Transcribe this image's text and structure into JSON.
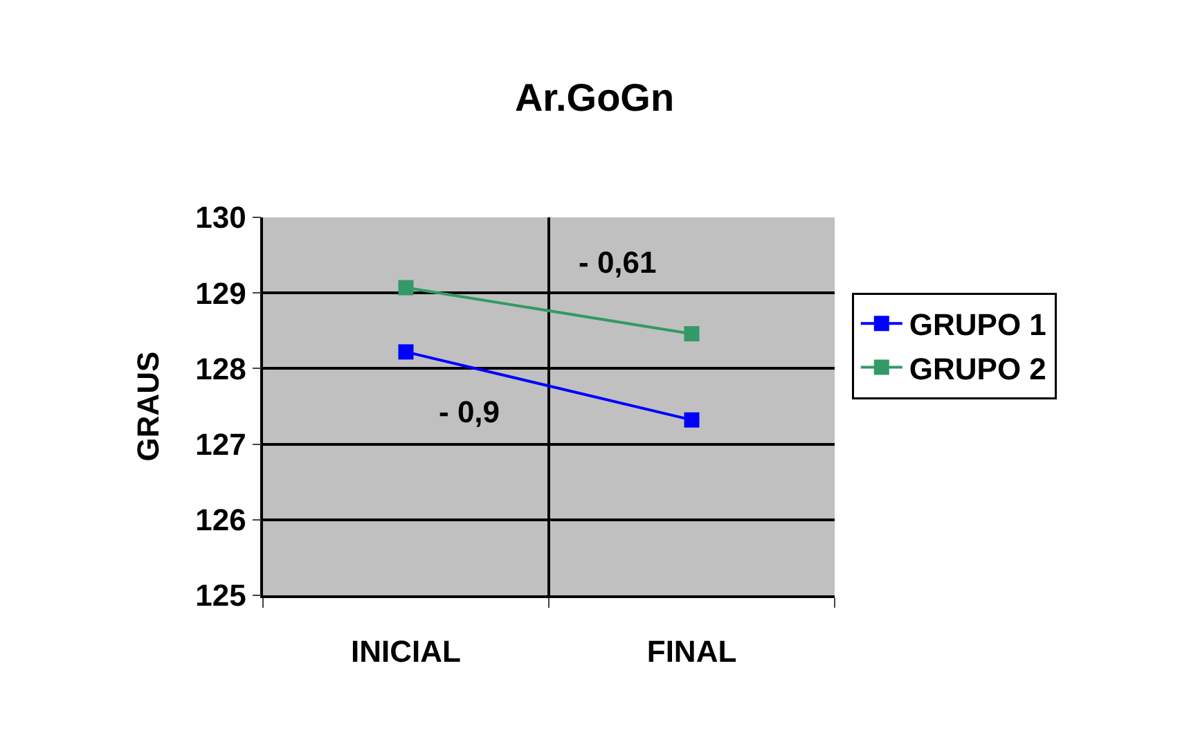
{
  "chart_data": {
    "type": "line",
    "title": "Ar.GoGn",
    "ylabel": "GRAUS",
    "categories": [
      "INICIAL",
      "FINAL"
    ],
    "series": [
      {
        "name": "GRUPO 1",
        "color": "#0000ff",
        "values": [
          128.22,
          127.32
        ]
      },
      {
        "name": "GRUPO 2",
        "color": "#339966",
        "values": [
          129.07,
          128.46
        ]
      }
    ],
    "ylim": [
      125,
      130
    ],
    "yticks": [
      125,
      126,
      127,
      128,
      129,
      130
    ],
    "grid": true,
    "legend": "right",
    "marker": "square",
    "line_style": "solid",
    "annotations": [
      "- 0,9",
      "- 0,61"
    ]
  }
}
